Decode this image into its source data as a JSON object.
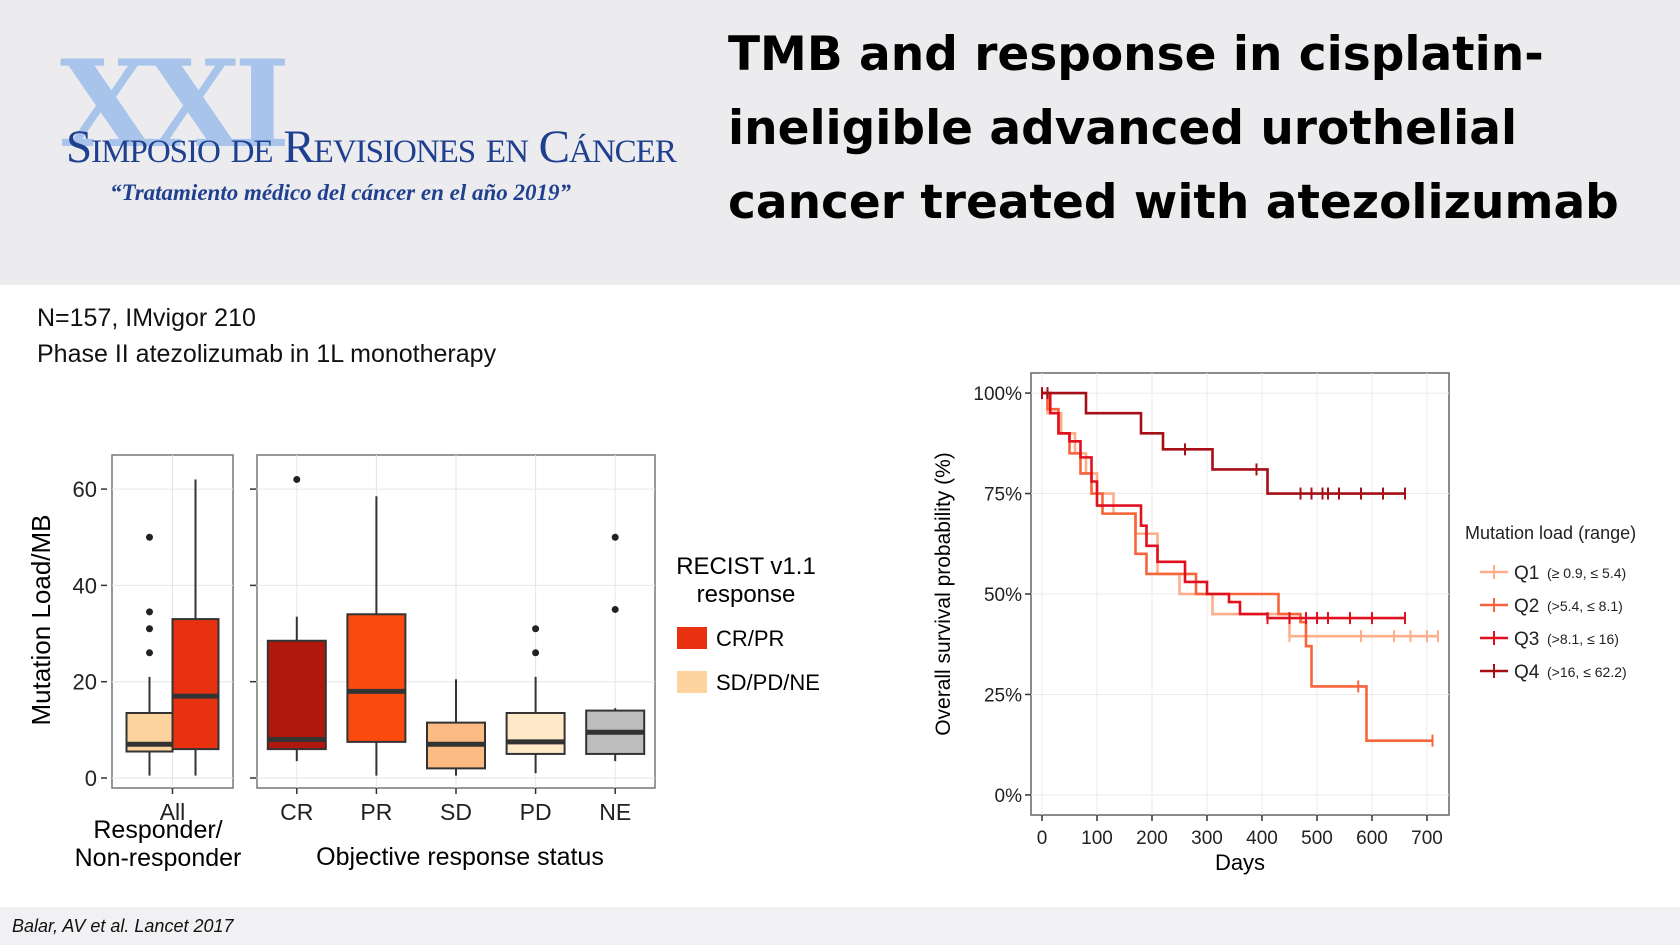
{
  "header": {
    "logo_numeral": "XXI",
    "logo_title": "Simposio de Revisiones en Cáncer",
    "logo_subtitle": "“Tratamiento médico del cáncer en el año 2019”",
    "title_lines": [
      "TMB and response in cisplatin-",
      "ineligible advanced urothelial",
      "cancer treated with atezolizumab"
    ]
  },
  "intro": {
    "line1": "N=157, IMvigor 210",
    "line2": "Phase II atezolizumab in 1L monotherapy"
  },
  "citation": "Balar, AV et al. Lancet 2017",
  "colors": {
    "cr_pr": "#e8320f",
    "sd_pd_ne": "#fdd49e",
    "cr": "#b0180e",
    "pr": "#fb4a0e",
    "sd": "#fdbb84",
    "pd": "#fee8c8",
    "ne": "#bdbdbd",
    "q1": "#fdae8a",
    "q2": "#f8643a",
    "q3": "#e0101e",
    "q4": "#a50f15"
  },
  "chart_data": [
    {
      "type": "box",
      "xlabel_left": "Responder/\nNon-responder",
      "xlabel_right": "Objective response status",
      "ylabel": "Mutation Load/MB",
      "ylim": [
        0,
        65
      ],
      "yticks": [
        0,
        20,
        40,
        60
      ],
      "legend": {
        "title": "RECIST v1.1\nresponse",
        "entries": [
          {
            "label": "CR/PR",
            "color_key": "cr_pr"
          },
          {
            "label": "SD/PD/NE",
            "color_key": "sd_pd_ne"
          }
        ]
      },
      "panels": [
        {
          "categories": [
            "All"
          ],
          "boxes": [
            {
              "category": "All",
              "group": "SD/PD/NE",
              "color_key": "sd_pd_ne",
              "whisker_low": 0.5,
              "q1": 5.5,
              "median": 7,
              "q3": 13.5,
              "whisker_high": 21,
              "outliers": [
                26,
                31,
                34.5,
                50
              ]
            },
            {
              "category": "All",
              "group": "CR/PR",
              "color_key": "cr_pr",
              "whisker_low": 0.5,
              "q1": 6,
              "median": 17,
              "q3": 33,
              "whisker_high": 62,
              "outliers": []
            }
          ]
        },
        {
          "categories": [
            "CR",
            "PR",
            "SD",
            "PD",
            "NE"
          ],
          "boxes": [
            {
              "category": "CR",
              "color_key": "cr",
              "whisker_low": 3.5,
              "q1": 6,
              "median": 8,
              "q3": 28.5,
              "whisker_high": 33.5,
              "outliers": [
                62
              ]
            },
            {
              "category": "PR",
              "color_key": "pr",
              "whisker_low": 0.5,
              "q1": 7.5,
              "median": 18,
              "q3": 34,
              "whisker_high": 58.5,
              "outliers": []
            },
            {
              "category": "SD",
              "color_key": "sd",
              "whisker_low": 0.5,
              "q1": 2,
              "median": 7,
              "q3": 11.5,
              "whisker_high": 20.5,
              "outliers": []
            },
            {
              "category": "PD",
              "color_key": "pd",
              "whisker_low": 1,
              "q1": 5,
              "median": 7.5,
              "q3": 13.5,
              "whisker_high": 21,
              "outliers": [
                26,
                31
              ]
            },
            {
              "category": "NE",
              "color_key": "ne",
              "whisker_low": 3.5,
              "q1": 5,
              "median": 9.5,
              "q3": 14,
              "whisker_high": 14.5,
              "outliers": [
                35,
                50
              ]
            }
          ]
        }
      ]
    },
    {
      "type": "line",
      "subtype": "kaplan-meier step",
      "xlabel": "Days",
      "ylabel": "Overall survival probability (%)",
      "xlim": [
        -20,
        740
      ],
      "ylim": [
        -0.05,
        1.05
      ],
      "xticks": [
        0,
        100,
        200,
        300,
        400,
        500,
        600,
        700
      ],
      "yticks": [
        {
          "value": 0,
          "label": "0%"
        },
        {
          "value": 0.25,
          "label": "25%"
        },
        {
          "value": 0.5,
          "label": "50%"
        },
        {
          "value": 0.75,
          "label": "75%"
        },
        {
          "value": 1,
          "label": "100%"
        }
      ],
      "legend": {
        "title": "Mutation load (range)",
        "position": "right"
      },
      "series": [
        {
          "name": "Q1",
          "range": "(≥ 0.9, ≤ 5.4)",
          "color_key": "q1",
          "x": [
            0,
            10,
            35,
            60,
            80,
            100,
            130,
            170,
            210,
            250,
            310,
            420,
            450,
            720
          ],
          "y": [
            1.0,
            0.95,
            0.9,
            0.85,
            0.8,
            0.75,
            0.7,
            0.65,
            0.55,
            0.5,
            0.45,
            0.45,
            0.395,
            0.395
          ],
          "censor": [
            {
              "x": 450,
              "y": 0.395
            },
            {
              "x": 480,
              "y": 0.395
            },
            {
              "x": 580,
              "y": 0.395
            },
            {
              "x": 640,
              "y": 0.395
            },
            {
              "x": 670,
              "y": 0.395
            },
            {
              "x": 700,
              "y": 0.395
            },
            {
              "x": 720,
              "y": 0.395
            }
          ]
        },
        {
          "name": "Q2",
          "range": "(>5.4, ≤ 8.1)",
          "color_key": "q2",
          "x": [
            0,
            10,
            30,
            50,
            70,
            90,
            110,
            170,
            190,
            230,
            280,
            310,
            350,
            430,
            470,
            480,
            490,
            580,
            590,
            710
          ],
          "y": [
            1.0,
            0.96,
            0.9,
            0.85,
            0.8,
            0.75,
            0.7,
            0.6,
            0.55,
            0.55,
            0.5,
            0.5,
            0.5,
            0.45,
            0.43,
            0.37,
            0.27,
            0.27,
            0.135,
            0.135
          ],
          "censor": [
            {
              "x": 480,
              "y": 0.43
            },
            {
              "x": 575,
              "y": 0.27
            },
            {
              "x": 710,
              "y": 0.135
            }
          ]
        },
        {
          "name": "Q3",
          "range": "(>8.1, ≤ 16)",
          "color_key": "q3",
          "x": [
            0,
            15,
            30,
            50,
            70,
            90,
            100,
            160,
            180,
            190,
            210,
            260,
            300,
            340,
            360,
            410,
            660
          ],
          "y": [
            1.0,
            0.95,
            0.9,
            0.88,
            0.84,
            0.78,
            0.72,
            0.72,
            0.67,
            0.62,
            0.58,
            0.53,
            0.5,
            0.48,
            0.45,
            0.44,
            0.44
          ],
          "censor": [
            {
              "x": 410,
              "y": 0.44
            },
            {
              "x": 450,
              "y": 0.44
            },
            {
              "x": 480,
              "y": 0.44
            },
            {
              "x": 500,
              "y": 0.44
            },
            {
              "x": 520,
              "y": 0.44
            },
            {
              "x": 560,
              "y": 0.44
            },
            {
              "x": 600,
              "y": 0.44
            },
            {
              "x": 660,
              "y": 0.44
            }
          ]
        },
        {
          "name": "Q4",
          "range": "(>16, ≤ 62.2)",
          "color_key": "q4",
          "x": [
            0,
            80,
            180,
            220,
            310,
            400,
            410,
            660
          ],
          "y": [
            1.0,
            0.95,
            0.9,
            0.86,
            0.81,
            0.81,
            0.75,
            0.75
          ],
          "censor": [
            {
              "x": 0,
              "y": 1.0
            },
            {
              "x": 10,
              "y": 1.0
            },
            {
              "x": 260,
              "y": 0.86
            },
            {
              "x": 390,
              "y": 0.81
            },
            {
              "x": 470,
              "y": 0.75
            },
            {
              "x": 490,
              "y": 0.75
            },
            {
              "x": 510,
              "y": 0.75
            },
            {
              "x": 520,
              "y": 0.75
            },
            {
              "x": 540,
              "y": 0.75
            },
            {
              "x": 580,
              "y": 0.75
            },
            {
              "x": 620,
              "y": 0.75
            },
            {
              "x": 660,
              "y": 0.75
            }
          ]
        }
      ]
    }
  ]
}
